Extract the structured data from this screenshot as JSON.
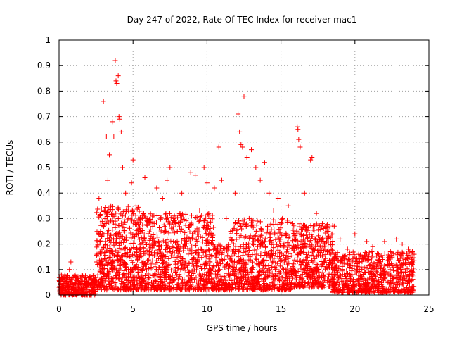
{
  "chart_data": {
    "type": "scatter",
    "title": "Day 247 of 2022, Rate Of TEC Index for receiver mac1",
    "xlabel": "GPS time / hours",
    "ylabel": "ROTI / TECUs",
    "xlim": [
      0,
      25
    ],
    "ylim": [
      0,
      1
    ],
    "x_ticks": [
      "0",
      "5",
      "10",
      "15",
      "20",
      "25"
    ],
    "y_ticks": [
      "0",
      "0.1",
      "0.2",
      "0.3",
      "0.4",
      "0.5",
      "0.6",
      "0.7",
      "0.8",
      "0.9",
      "1"
    ],
    "grid": true,
    "legend": "none",
    "marker": "plus",
    "color": "#ff0000",
    "series": [
      {
        "points": [
          [
            0.1,
            0.04
          ],
          [
            0.2,
            0.06
          ],
          [
            0.3,
            0.03
          ],
          [
            0.4,
            0.08
          ],
          [
            0.5,
            0.05
          ],
          [
            0.6,
            0.07
          ],
          [
            0.7,
            0.1
          ],
          [
            0.8,
            0.13
          ],
          [
            0.9,
            0.06
          ],
          [
            1.0,
            0.04
          ],
          [
            1.2,
            0.03
          ],
          [
            1.4,
            0.05
          ],
          [
            1.6,
            0.02
          ],
          [
            1.8,
            0.04
          ],
          [
            2.0,
            0.06
          ],
          [
            2.2,
            0.03
          ],
          [
            2.4,
            0.05
          ],
          [
            2.6,
            0.12
          ],
          [
            2.7,
            0.38
          ],
          [
            2.8,
            0.25
          ],
          [
            2.9,
            0.18
          ],
          [
            3.0,
            0.76
          ],
          [
            3.1,
            0.3
          ],
          [
            3.2,
            0.62
          ],
          [
            3.3,
            0.45
          ],
          [
            3.4,
            0.55
          ],
          [
            3.5,
            0.35
          ],
          [
            3.6,
            0.68
          ],
          [
            3.7,
            0.62
          ],
          [
            3.8,
            0.92
          ],
          [
            3.85,
            0.84
          ],
          [
            3.9,
            0.83
          ],
          [
            4.0,
            0.86
          ],
          [
            4.05,
            0.7
          ],
          [
            4.1,
            0.69
          ],
          [
            4.2,
            0.64
          ],
          [
            4.3,
            0.5
          ],
          [
            4.5,
            0.4
          ],
          [
            4.7,
            0.3
          ],
          [
            4.9,
            0.44
          ],
          [
            5.0,
            0.53
          ],
          [
            5.2,
            0.35
          ],
          [
            5.5,
            0.25
          ],
          [
            5.8,
            0.46
          ],
          [
            6.0,
            0.3
          ],
          [
            6.3,
            0.22
          ],
          [
            6.6,
            0.42
          ],
          [
            7.0,
            0.38
          ],
          [
            7.3,
            0.45
          ],
          [
            7.5,
            0.5
          ],
          [
            7.8,
            0.31
          ],
          [
            8.0,
            0.25
          ],
          [
            8.3,
            0.4
          ],
          [
            8.6,
            0.22
          ],
          [
            8.9,
            0.48
          ],
          [
            9.2,
            0.47
          ],
          [
            9.5,
            0.33
          ],
          [
            9.8,
            0.5
          ],
          [
            10.0,
            0.44
          ],
          [
            10.2,
            0.3
          ],
          [
            10.5,
            0.42
          ],
          [
            10.8,
            0.58
          ],
          [
            11.0,
            0.45
          ],
          [
            11.3,
            0.3
          ],
          [
            11.6,
            0.25
          ],
          [
            11.9,
            0.4
          ],
          [
            12.1,
            0.71
          ],
          [
            12.2,
            0.64
          ],
          [
            12.3,
            0.59
          ],
          [
            12.4,
            0.58
          ],
          [
            12.5,
            0.78
          ],
          [
            12.7,
            0.54
          ],
          [
            13.0,
            0.57
          ],
          [
            13.3,
            0.5
          ],
          [
            13.6,
            0.45
          ],
          [
            13.9,
            0.52
          ],
          [
            14.2,
            0.4
          ],
          [
            14.5,
            0.33
          ],
          [
            14.8,
            0.38
          ],
          [
            15.1,
            0.3
          ],
          [
            15.5,
            0.35
          ],
          [
            15.8,
            0.28
          ],
          [
            16.1,
            0.66
          ],
          [
            16.15,
            0.65
          ],
          [
            16.2,
            0.61
          ],
          [
            16.3,
            0.58
          ],
          [
            16.6,
            0.4
          ],
          [
            17.0,
            0.53
          ],
          [
            17.1,
            0.54
          ],
          [
            17.4,
            0.32
          ],
          [
            17.8,
            0.28
          ],
          [
            18.2,
            0.25
          ],
          [
            18.6,
            0.27
          ],
          [
            19.0,
            0.22
          ],
          [
            19.5,
            0.18
          ],
          [
            20.0,
            0.24
          ],
          [
            20.4,
            0.15
          ],
          [
            20.8,
            0.21
          ],
          [
            21.2,
            0.19
          ],
          [
            21.6,
            0.16
          ],
          [
            22.0,
            0.21
          ],
          [
            22.4,
            0.17
          ],
          [
            22.8,
            0.22
          ],
          [
            23.2,
            0.2
          ],
          [
            23.6,
            0.18
          ],
          [
            24.0,
            0.16
          ]
        ]
      }
    ],
    "bulk": [
      {
        "x0": 0,
        "x1": 2.5,
        "ymin": 0.0,
        "ymax": 0.08,
        "n": 320
      },
      {
        "x0": 2.5,
        "x1": 5.5,
        "ymin": 0.02,
        "ymax": 0.35,
        "n": 520
      },
      {
        "x0": 5.5,
        "x1": 10.5,
        "ymin": 0.02,
        "ymax": 0.32,
        "n": 760
      },
      {
        "x0": 10.5,
        "x1": 11.6,
        "ymin": 0.02,
        "ymax": 0.2,
        "n": 140
      },
      {
        "x0": 11.6,
        "x1": 15.8,
        "ymin": 0.02,
        "ymax": 0.3,
        "n": 600
      },
      {
        "x0": 15.8,
        "x1": 18.5,
        "ymin": 0.03,
        "ymax": 0.28,
        "n": 420
      },
      {
        "x0": 18.5,
        "x1": 24.0,
        "ymin": 0.01,
        "ymax": 0.17,
        "n": 700
      }
    ]
  }
}
